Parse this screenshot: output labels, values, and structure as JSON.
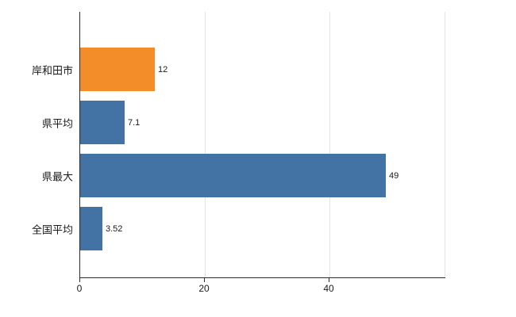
{
  "chart_data": {
    "type": "bar",
    "orientation": "horizontal",
    "title": "",
    "xlabel": "",
    "ylabel": "",
    "categories": [
      "岸和田市",
      "県平均",
      "県最大",
      "全国平均"
    ],
    "values": [
      12,
      7.1,
      49,
      3.52
    ],
    "value_labels": [
      "12",
      "7.1",
      "49",
      "3.52"
    ],
    "bar_colors": [
      "#f28d2a",
      "#4273a4",
      "#4273a4",
      "#4273a4"
    ],
    "x_ticks": [
      0,
      20,
      40
    ],
    "xlim": [
      0,
      58.6
    ],
    "grid": "vertical-light",
    "legend": "none",
    "background": "#ffffff",
    "axis_color": "#2b2b2b",
    "gridline_color": "#e4e4e4"
  }
}
